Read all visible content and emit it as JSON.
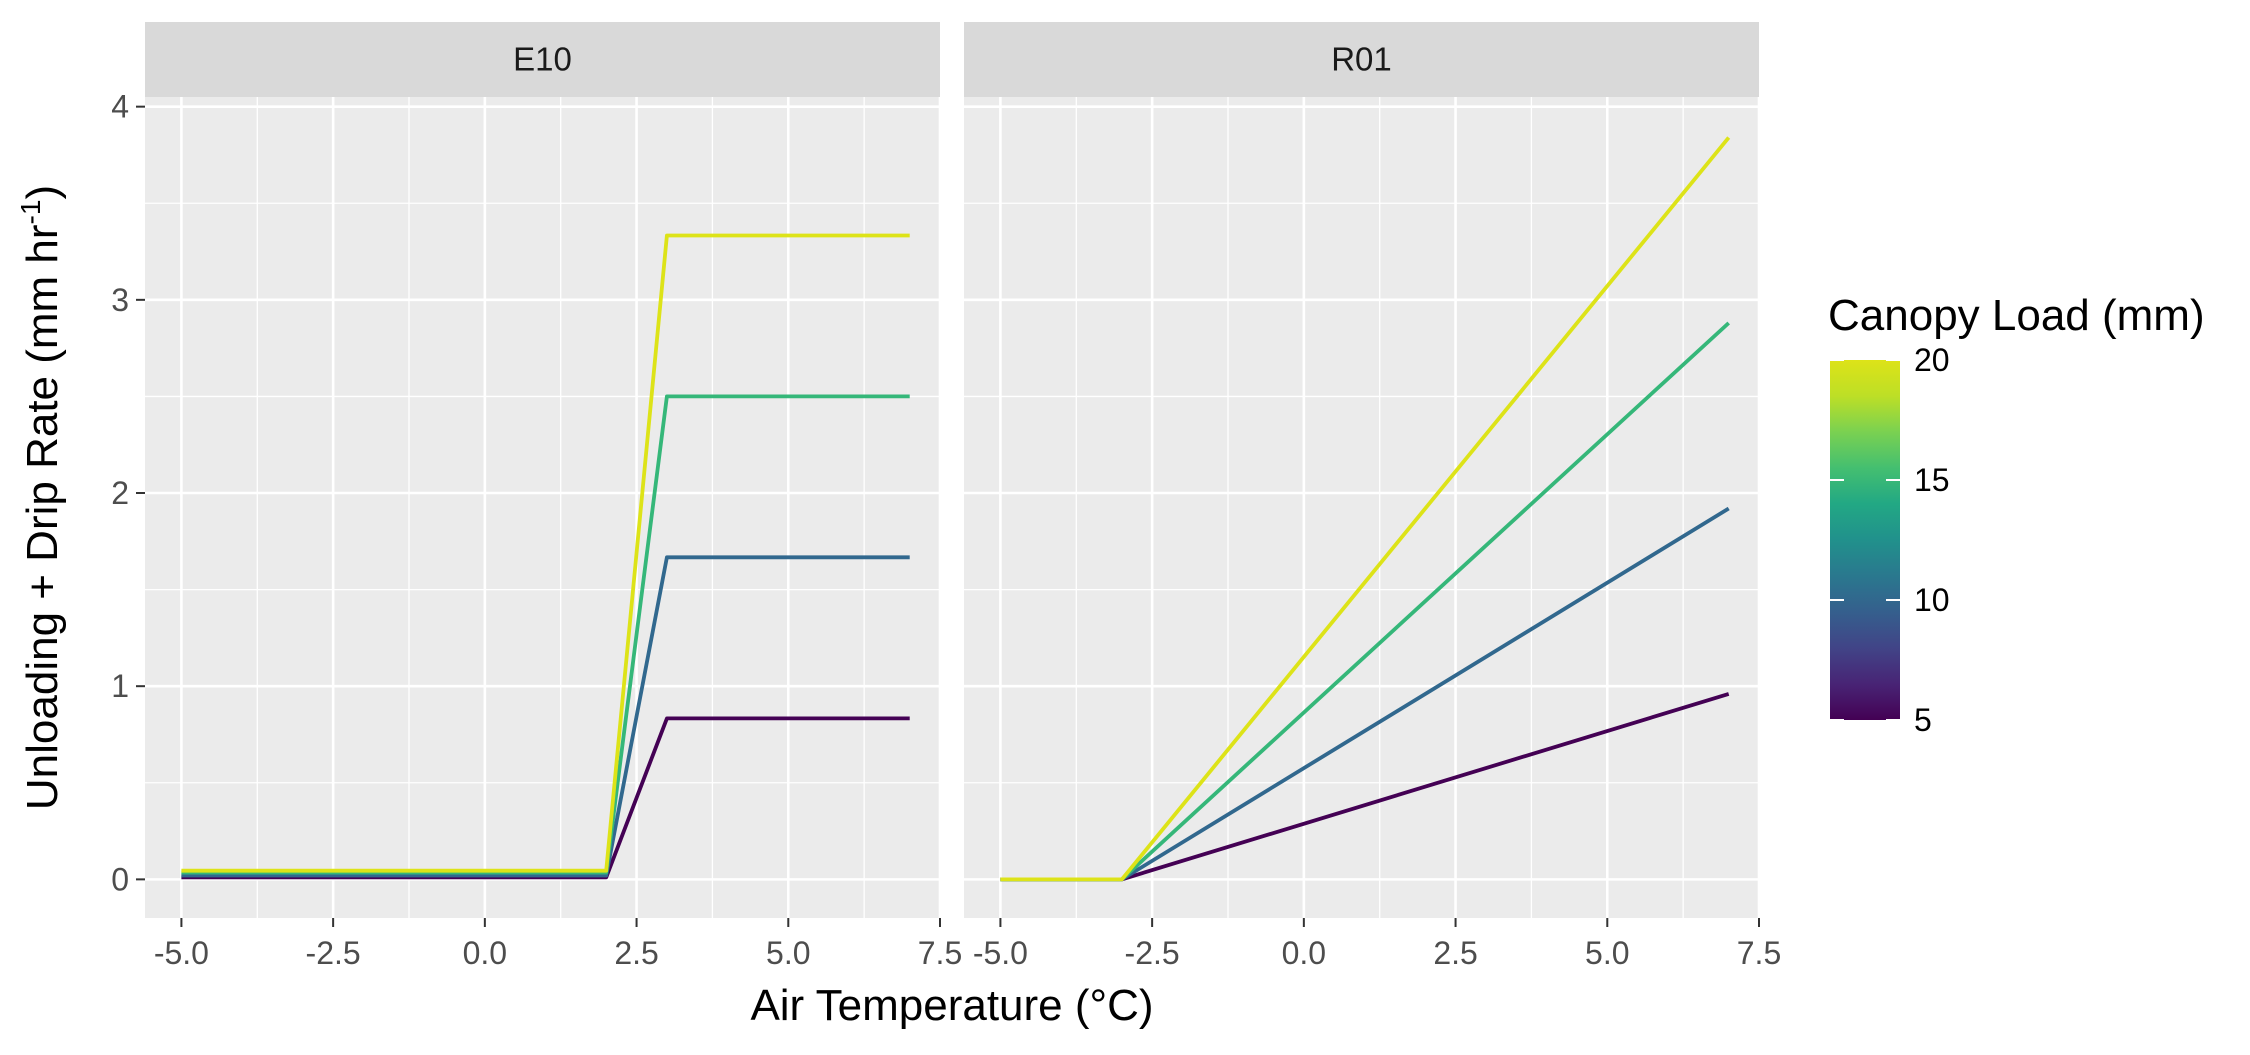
{
  "chart_data": {
    "type": "line",
    "facets": [
      "E10",
      "R01"
    ],
    "xlabel": "Air Temperature (°C)",
    "ylabel": "Unloading + Drip Rate (mm hr",
    "ylabel_superscript": "-1",
    "ylabel_suffix": ")",
    "xlim": [
      -5.6,
      7.5
    ],
    "ylim": [
      -0.2,
      4.05
    ],
    "x_ticks": [
      "-5.0",
      "-2.5",
      "0.0",
      "2.5",
      "5.0",
      "7.5"
    ],
    "x_tick_values": [
      -5,
      -2.5,
      0,
      2.5,
      5,
      7.5
    ],
    "y_ticks": [
      "0",
      "1",
      "2",
      "3",
      "4"
    ],
    "y_tick_values": [
      0,
      1,
      2,
      3,
      4
    ],
    "grid": true,
    "panel_background": "#ebebeb",
    "strip_background": "#d9d9d9",
    "legend": {
      "title": "Canopy Load (mm)",
      "position": "right",
      "type": "colorbar",
      "range": [
        5,
        20
      ],
      "labels": [
        "5",
        "10",
        "15",
        "20"
      ],
      "label_values": [
        5,
        10,
        15,
        20
      ]
    },
    "series": [
      {
        "facet": "E10",
        "canopy_load": 5,
        "color": "#440154",
        "points": [
          [
            -5,
            0.01
          ],
          [
            2,
            0.01
          ],
          [
            3,
            0.833
          ],
          [
            7,
            0.833
          ]
        ]
      },
      {
        "facet": "E10",
        "canopy_load": 10,
        "color": "#31688e",
        "points": [
          [
            -5,
            0.02
          ],
          [
            2,
            0.02
          ],
          [
            3,
            1.667
          ],
          [
            7,
            1.667
          ]
        ]
      },
      {
        "facet": "E10",
        "canopy_load": 15,
        "color": "#35b779",
        "points": [
          [
            -5,
            0.035
          ],
          [
            2,
            0.035
          ],
          [
            3,
            2.5
          ],
          [
            7,
            2.5
          ]
        ]
      },
      {
        "facet": "E10",
        "canopy_load": 20,
        "color": "#dde318",
        "points": [
          [
            -5,
            0.045
          ],
          [
            2,
            0.045
          ],
          [
            3,
            3.333
          ],
          [
            7,
            3.333
          ]
        ]
      },
      {
        "facet": "R01",
        "canopy_load": 5,
        "color": "#440154",
        "points": [
          [
            -5,
            0
          ],
          [
            -3,
            0
          ],
          [
            7,
            0.96
          ]
        ]
      },
      {
        "facet": "R01",
        "canopy_load": 10,
        "color": "#31688e",
        "points": [
          [
            -5,
            0
          ],
          [
            -3,
            0
          ],
          [
            7,
            1.92
          ]
        ]
      },
      {
        "facet": "R01",
        "canopy_load": 15,
        "color": "#35b779",
        "points": [
          [
            -5,
            0
          ],
          [
            -3,
            0
          ],
          [
            7,
            2.88
          ]
        ]
      },
      {
        "facet": "R01",
        "canopy_load": 20,
        "color": "#dde318",
        "points": [
          [
            -5,
            0
          ],
          [
            -3,
            0
          ],
          [
            7,
            3.84
          ]
        ]
      }
    ]
  }
}
